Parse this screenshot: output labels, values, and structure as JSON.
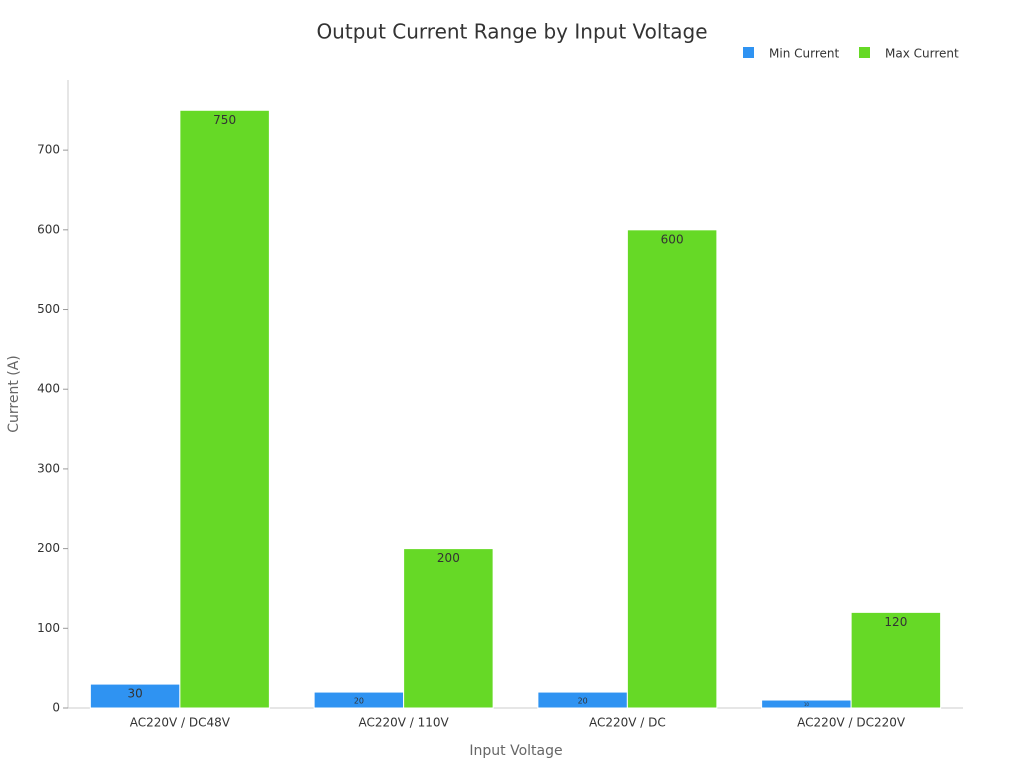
{
  "chart_data": {
    "type": "bar",
    "title": "Output Current Range by Input Voltage",
    "x_label": "Input Voltage",
    "y_label": "Current (A)",
    "categories": [
      "AC220V / DC48V",
      "AC220V / 110V",
      "AC220V / DC",
      "AC220V / DC220V"
    ],
    "series": [
      {
        "name": "Min Current",
        "color": "#2f93f2",
        "values": [
          30,
          20,
          20,
          10
        ]
      },
      {
        "name": "Max Current",
        "color": "#66d926",
        "values": [
          750,
          200,
          600,
          120
        ]
      }
    ],
    "ylim": [
      0,
      788
    ],
    "yticks": [
      0,
      100,
      200,
      300,
      400,
      500,
      600,
      700
    ],
    "legend": "top-right",
    "grid": false
  }
}
